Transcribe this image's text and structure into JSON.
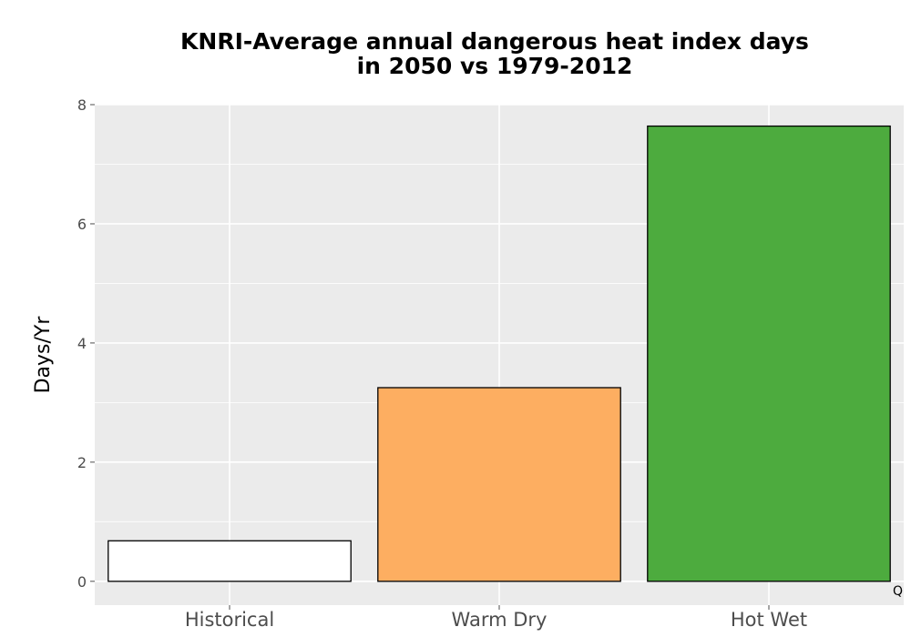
{
  "chart_data": {
    "type": "bar",
    "title_lines": [
      "KNRI-Average annual dangerous heat index days",
      "in 2050 vs 1979-2012"
    ],
    "xlabel": "",
    "ylabel": "Days/Yr",
    "categories": [
      "Historical",
      "Warm Dry",
      "Hot Wet"
    ],
    "values": [
      0.68,
      3.25,
      7.64
    ],
    "colors": [
      "#ffffff",
      "#fdae61",
      "#4dab3e"
    ],
    "bar_border_color": "#000000",
    "ylim": [
      -0.4,
      8.0
    ],
    "yticks": [
      0,
      2,
      4,
      6,
      8
    ],
    "grid": true,
    "panel_background": "#ebebeb",
    "grid_color": "#ffffff",
    "legend": "none",
    "corner_annotation": "Q"
  }
}
